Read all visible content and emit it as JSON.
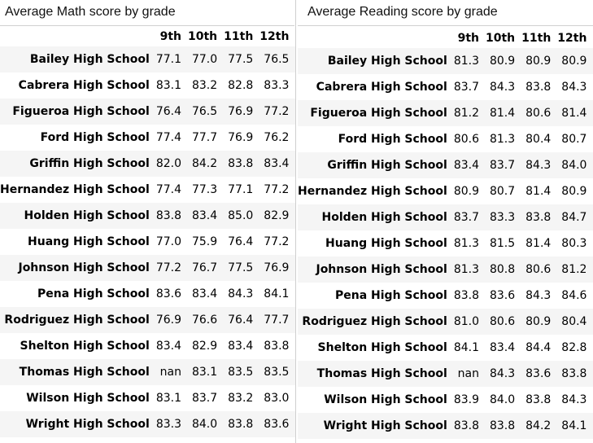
{
  "tables": [
    {
      "title": "Average Math score by grade",
      "columns": [
        "9th",
        "10th",
        "11th",
        "12th"
      ],
      "rows": [
        {
          "school": "Bailey High School",
          "values": [
            "77.1",
            "77.0",
            "77.5",
            "76.5"
          ]
        },
        {
          "school": "Cabrera High School",
          "values": [
            "83.1",
            "83.2",
            "82.8",
            "83.3"
          ]
        },
        {
          "school": "Figueroa High School",
          "values": [
            "76.4",
            "76.5",
            "76.9",
            "77.2"
          ]
        },
        {
          "school": "Ford High School",
          "values": [
            "77.4",
            "77.7",
            "76.9",
            "76.2"
          ]
        },
        {
          "school": "Griffin High School",
          "values": [
            "82.0",
            "84.2",
            "83.8",
            "83.4"
          ]
        },
        {
          "school": "Hernandez High School",
          "values": [
            "77.4",
            "77.3",
            "77.1",
            "77.2"
          ]
        },
        {
          "school": "Holden High School",
          "values": [
            "83.8",
            "83.4",
            "85.0",
            "82.9"
          ]
        },
        {
          "school": "Huang High School",
          "values": [
            "77.0",
            "75.9",
            "76.4",
            "77.2"
          ]
        },
        {
          "school": "Johnson High School",
          "values": [
            "77.2",
            "76.7",
            "77.5",
            "76.9"
          ]
        },
        {
          "school": "Pena High School",
          "values": [
            "83.6",
            "83.4",
            "84.3",
            "84.1"
          ]
        },
        {
          "school": "Rodriguez High School",
          "values": [
            "76.9",
            "76.6",
            "76.4",
            "77.7"
          ]
        },
        {
          "school": "Shelton High School",
          "values": [
            "83.4",
            "82.9",
            "83.4",
            "83.8"
          ]
        },
        {
          "school": "Thomas High School",
          "values": [
            "nan",
            "83.1",
            "83.5",
            "83.5"
          ]
        },
        {
          "school": "Wilson High School",
          "values": [
            "83.1",
            "83.7",
            "83.2",
            "83.0"
          ]
        },
        {
          "school": "Wright High School",
          "values": [
            "83.3",
            "84.0",
            "83.8",
            "83.6"
          ]
        }
      ]
    },
    {
      "title": "Average Reading score by grade",
      "columns": [
        "9th",
        "10th",
        "11th",
        "12th"
      ],
      "rows": [
        {
          "school": "Bailey High School",
          "values": [
            "81.3",
            "80.9",
            "80.9",
            "80.9"
          ]
        },
        {
          "school": "Cabrera High School",
          "values": [
            "83.7",
            "84.3",
            "83.8",
            "84.3"
          ]
        },
        {
          "school": "Figueroa High School",
          "values": [
            "81.2",
            "81.4",
            "80.6",
            "81.4"
          ]
        },
        {
          "school": "Ford High School",
          "values": [
            "80.6",
            "81.3",
            "80.4",
            "80.7"
          ]
        },
        {
          "school": "Griffin High School",
          "values": [
            "83.4",
            "83.7",
            "84.3",
            "84.0"
          ]
        },
        {
          "school": "Hernandez High School",
          "values": [
            "80.9",
            "80.7",
            "81.4",
            "80.9"
          ]
        },
        {
          "school": "Holden High School",
          "values": [
            "83.7",
            "83.3",
            "83.8",
            "84.7"
          ]
        },
        {
          "school": "Huang High School",
          "values": [
            "81.3",
            "81.5",
            "81.4",
            "80.3"
          ]
        },
        {
          "school": "Johnson High School",
          "values": [
            "81.3",
            "80.8",
            "80.6",
            "81.2"
          ]
        },
        {
          "school": "Pena High School",
          "values": [
            "83.8",
            "83.6",
            "84.3",
            "84.6"
          ]
        },
        {
          "school": "Rodriguez High School",
          "values": [
            "81.0",
            "80.6",
            "80.9",
            "80.4"
          ]
        },
        {
          "school": "Shelton High School",
          "values": [
            "84.1",
            "83.4",
            "84.4",
            "82.8"
          ]
        },
        {
          "school": "Thomas High School",
          "values": [
            "nan",
            "84.3",
            "83.6",
            "83.8"
          ]
        },
        {
          "school": "Wilson High School",
          "values": [
            "83.9",
            "84.0",
            "83.8",
            "84.3"
          ]
        },
        {
          "school": "Wright High School",
          "values": [
            "83.8",
            "83.8",
            "84.2",
            "84.1"
          ]
        }
      ]
    }
  ]
}
